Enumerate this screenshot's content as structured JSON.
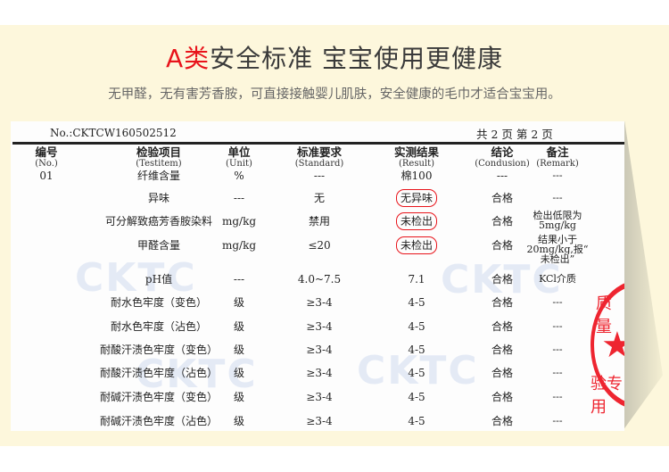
{
  "header": {
    "title_accent": "A类",
    "title_rest": "安全标准  宝宝使用更健康",
    "subtitle": "无甲醛，无有害芳香胺，可直接接触婴儿肌肤，安全健康的毛巾才适合宝宝用。"
  },
  "report": {
    "number": "No.:CKTCW160502512",
    "pages": "共 2 页   第 2 页",
    "watermark": "CKTC",
    "stamp": {
      "top": "质量",
      "bottom": "验专用",
      "icon": "star-icon",
      "color": "#ee2530"
    },
    "columns": [
      {
        "zh": "编号",
        "en": "(No.)"
      },
      {
        "zh": "检验项目",
        "en": "(Testitem)"
      },
      {
        "zh": "单位",
        "en": "(Unit)"
      },
      {
        "zh": "标准要求",
        "en": "(Standard)"
      },
      {
        "zh": "实测结果",
        "en": "(Result)"
      },
      {
        "zh": "结论",
        "en": "(Condusion)"
      },
      {
        "zh": "备注",
        "en": "(Remark)"
      }
    ],
    "rows": [
      {
        "no": "01",
        "item": "纤维含量",
        "unit": "%",
        "standard": "---",
        "result": "棉100",
        "conclusion": "---",
        "remark": "---",
        "circled": false
      },
      {
        "no": "",
        "item": "异味",
        "unit": "---",
        "standard": "无",
        "result": "无异味",
        "conclusion": "合格",
        "remark": "---",
        "circled": true
      },
      {
        "no": "",
        "item": "可分解致癌芳香胺染料",
        "unit": "mg/kg",
        "standard": "禁用",
        "result": "未检出",
        "conclusion": "合格",
        "remark": "检出低限为\n5mg/kg",
        "circled": true
      },
      {
        "no": "",
        "item": "甲醛含量",
        "unit": "mg/kg",
        "standard": "≤20",
        "result": "未检出",
        "conclusion": "合格",
        "remark": "结果小于\n20mg/kg,报“\n未检出”",
        "circled": true
      },
      {
        "no": "",
        "item": "pH值",
        "unit": "---",
        "standard": "4.0~7.5",
        "result": "7.1",
        "conclusion": "合格",
        "remark": "KCl介质",
        "circled": false
      },
      {
        "no": "",
        "item": "耐水色牢度（变色）",
        "unit": "级",
        "standard": "≥3-4",
        "result": "4-5",
        "conclusion": "合格",
        "remark": "---",
        "circled": false
      },
      {
        "no": "",
        "item": "耐水色牢度（沾色）",
        "unit": "级",
        "standard": "≥3-4",
        "result": "4-5",
        "conclusion": "合格",
        "remark": "---",
        "circled": false
      },
      {
        "no": "",
        "item": "耐酸汗渍色牢度（变色）",
        "unit": "级",
        "standard": "≥3-4",
        "result": "4-5",
        "conclusion": "合格",
        "remark": "---",
        "circled": false
      },
      {
        "no": "",
        "item": "耐酸汗渍色牢度（沾色）",
        "unit": "级",
        "standard": "≥3-4",
        "result": "4-5",
        "conclusion": "合格",
        "remark": "---",
        "circled": false
      },
      {
        "no": "",
        "item": "耐碱汗渍色牢度（变色）",
        "unit": "级",
        "standard": "≥3-4",
        "result": "4-5",
        "conclusion": "合格",
        "remark": "---",
        "circled": false
      },
      {
        "no": "",
        "item": "耐碱汗渍色牢度（沾色）",
        "unit": "级",
        "standard": "≥3-4",
        "result": "4-5",
        "conclusion": "合格",
        "remark": "---",
        "circled": false
      }
    ]
  }
}
